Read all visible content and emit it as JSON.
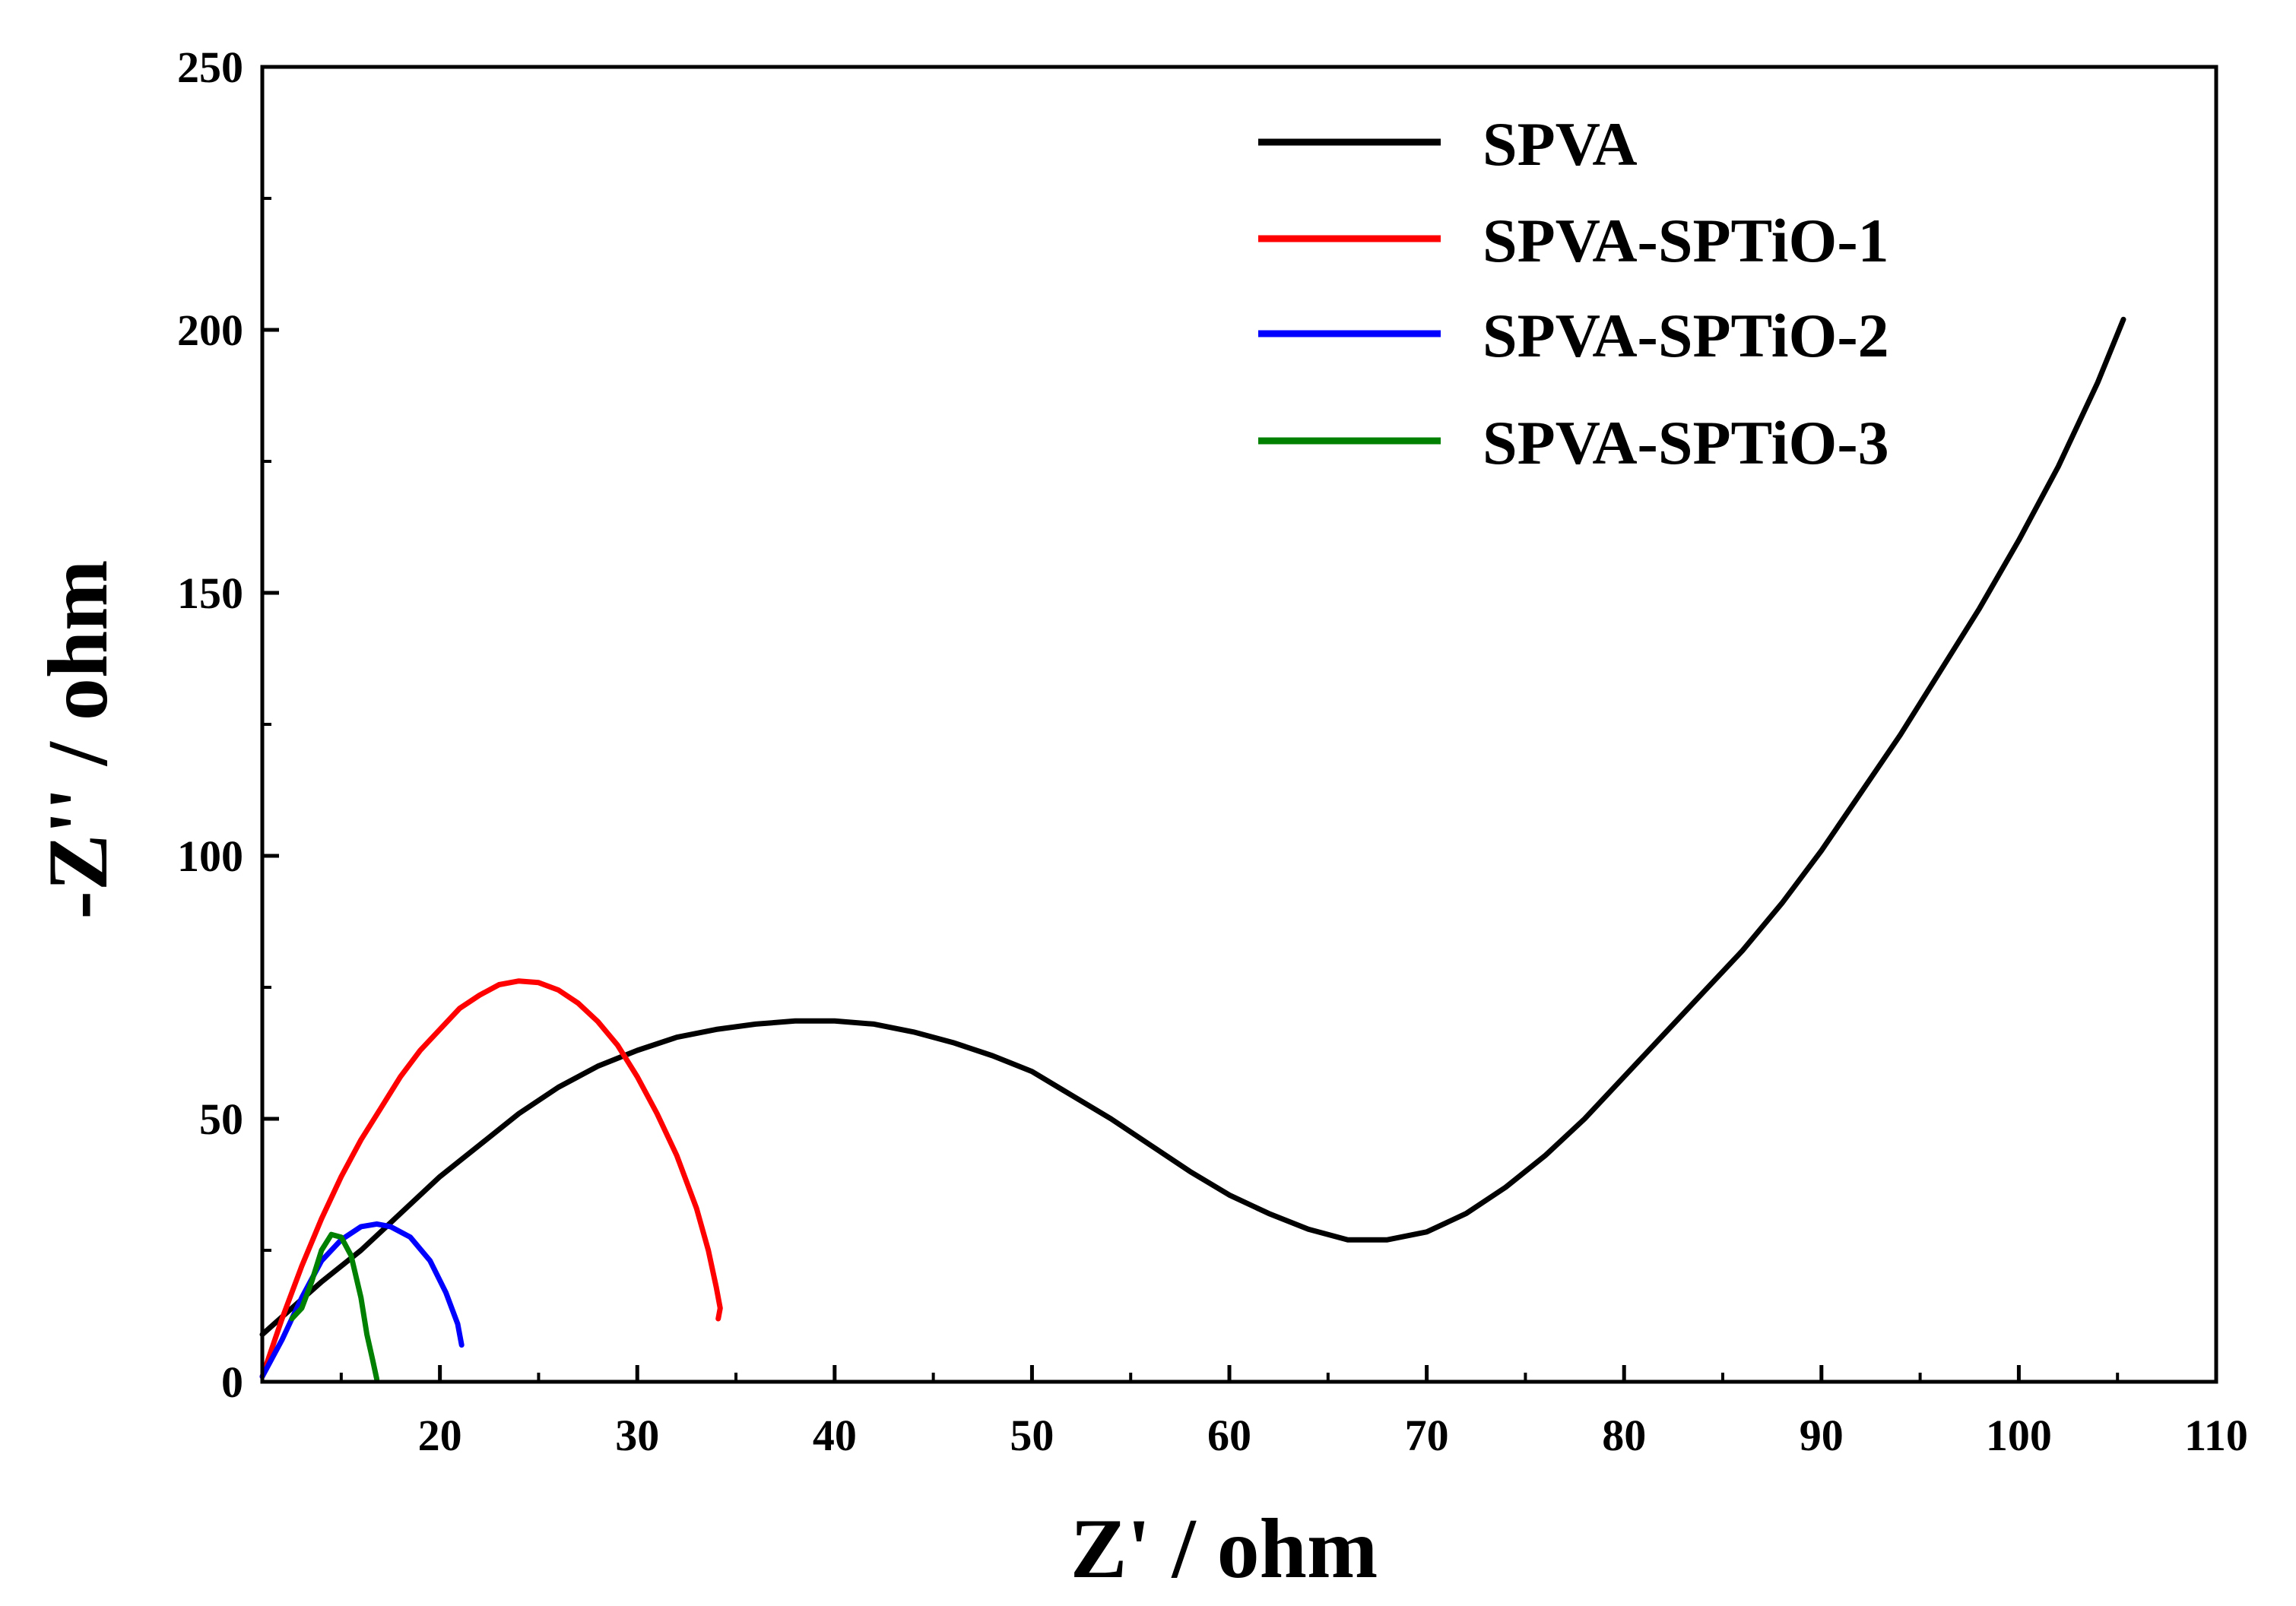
{
  "chart_data": {
    "type": "line",
    "title": "",
    "xlabel": "Z' / ohm",
    "ylabel": "-Z'' / ohm",
    "xlim": [
      11,
      110
    ],
    "ylim": [
      0,
      250
    ],
    "xticks": [
      20,
      30,
      40,
      50,
      60,
      70,
      80,
      90,
      100,
      110
    ],
    "yticks": [
      0,
      50,
      100,
      150,
      200,
      250
    ],
    "grid": false,
    "legend_position": "top-right",
    "series": [
      {
        "name": "SPVA",
        "color": "#000000",
        "x": [
          11,
          12.5,
          14,
          16,
          18,
          20,
          22,
          24,
          26,
          28,
          30,
          32,
          34,
          36,
          38,
          40,
          42,
          44,
          46,
          48,
          50,
          52,
          54,
          56,
          58,
          60,
          62,
          64,
          66,
          68,
          70,
          72,
          74,
          76,
          78,
          80,
          82,
          84,
          86,
          88,
          90,
          92,
          94,
          96,
          98,
          100,
          102,
          104,
          105.3
        ],
        "y": [
          9,
          14,
          19,
          25,
          32,
          39,
          45,
          51,
          56,
          60,
          63,
          65.5,
          67,
          68,
          68.6,
          68.6,
          68,
          66.5,
          64.5,
          62,
          59,
          54.5,
          50,
          45,
          40,
          35.5,
          32,
          29,
          27,
          27,
          28.5,
          32,
          37,
          43,
          50,
          58,
          66,
          74,
          82,
          91,
          101,
          112,
          123,
          135,
          147,
          160,
          174,
          190,
          202
        ]
      },
      {
        "name": "SPVA-SPTiO-1",
        "color": "#ff0000",
        "x": [
          11,
          12,
          13,
          14,
          15,
          16,
          17,
          18,
          19,
          20,
          21,
          22,
          23,
          24,
          25,
          26,
          27,
          28,
          29,
          30,
          31,
          32,
          33,
          33.6,
          34,
          34.2,
          34.1
        ],
        "y": [
          1,
          12,
          22,
          31,
          39,
          46,
          52,
          58,
          63,
          67,
          71,
          73.5,
          75.5,
          76.2,
          75.9,
          74.5,
          72,
          68.5,
          64,
          58,
          51,
          43,
          33,
          25,
          18,
          14,
          12
        ]
      },
      {
        "name": "SPVA-SPTiO-2",
        "color": "#0000ff",
        "x": [
          11,
          12,
          13,
          14,
          15,
          16,
          16.8,
          17.5,
          18.5,
          19.5,
          20.3,
          20.9,
          21.1
        ],
        "y": [
          1,
          8,
          16,
          23,
          27,
          29.5,
          30,
          29.5,
          27.5,
          23,
          17,
          11,
          7
        ]
      },
      {
        "name": "SPVA-SPTiO-3",
        "color": "#008000",
        "x": [
          12.5,
          13,
          13.5,
          14,
          14.5,
          15,
          15.5,
          16,
          16.3,
          16.6,
          16.8
        ],
        "y": [
          12,
          14,
          19,
          25,
          28,
          27.5,
          24,
          16,
          9,
          4,
          0.5
        ]
      }
    ]
  }
}
